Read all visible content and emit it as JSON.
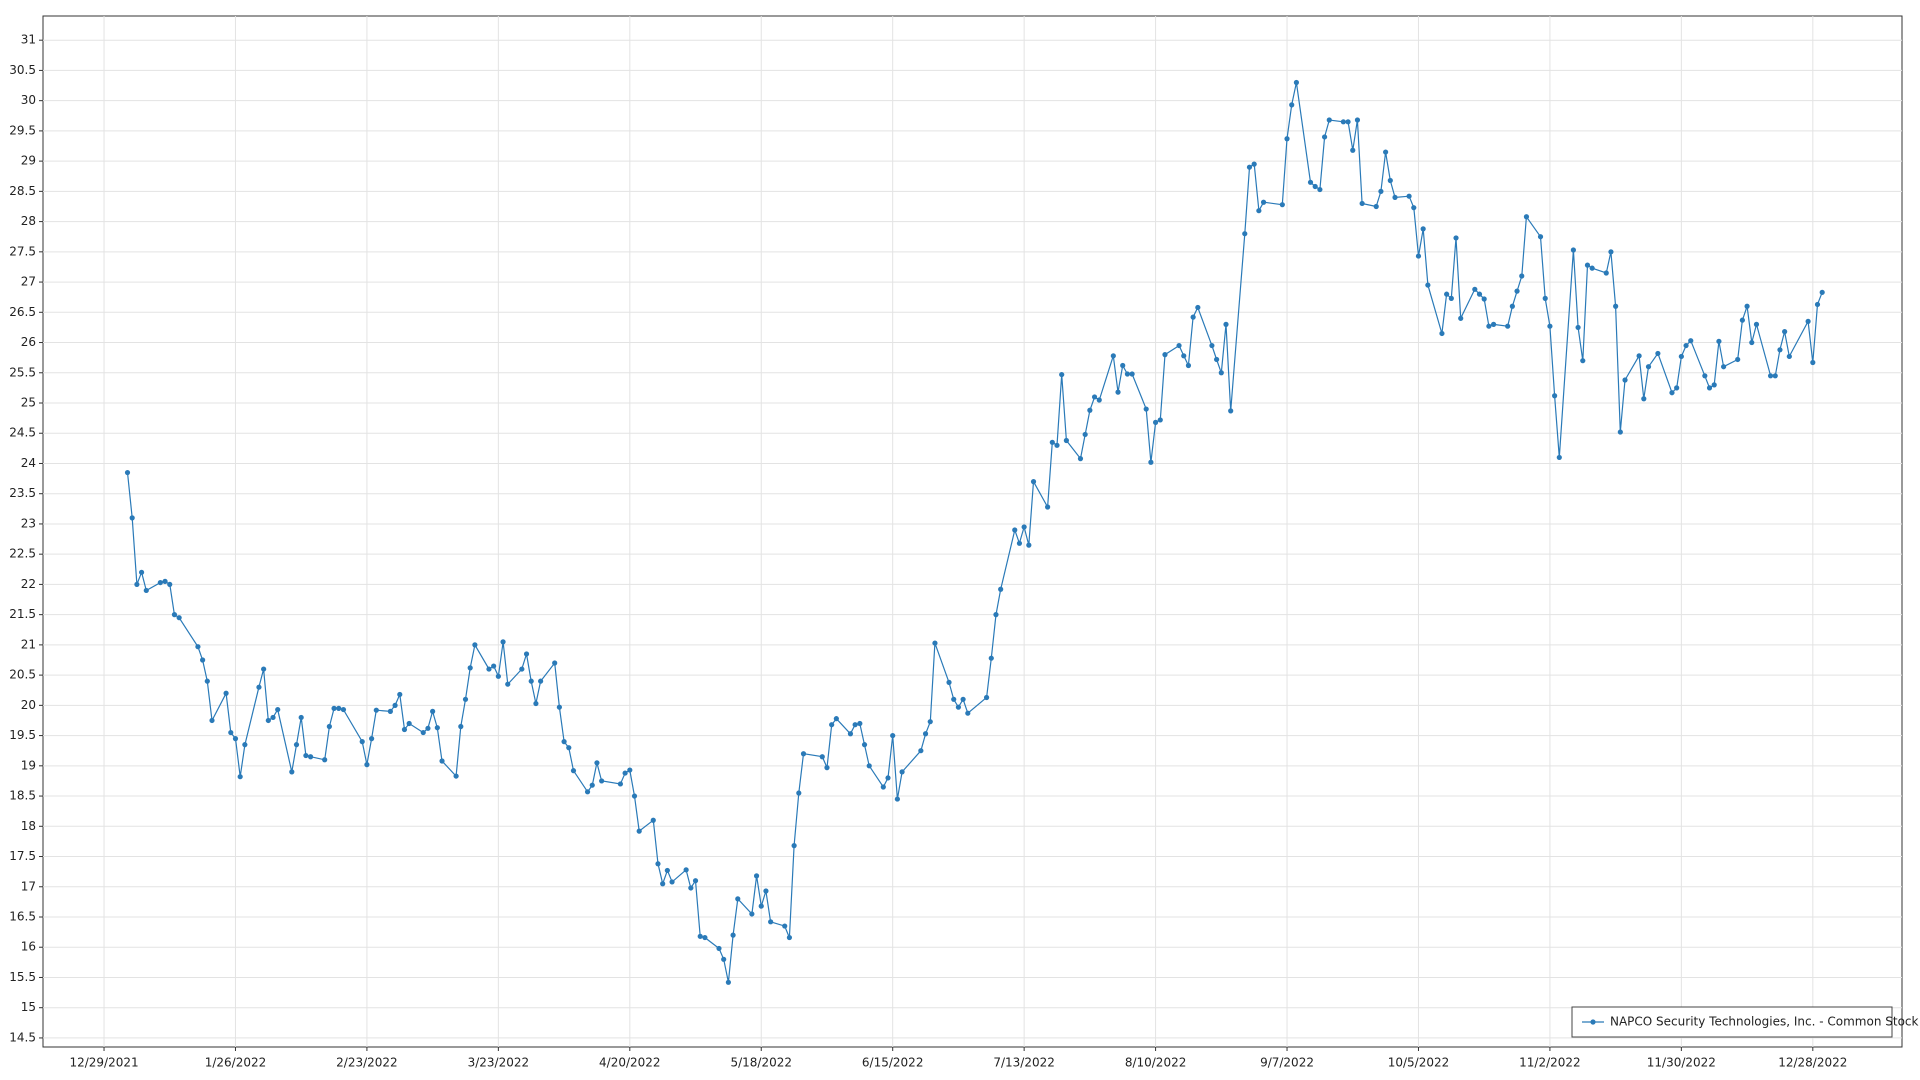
{
  "chart_data": {
    "type": "line",
    "x": [
      "2022-01-03",
      "2022-01-04",
      "2022-01-05",
      "2022-01-06",
      "2022-01-07",
      "2022-01-10",
      "2022-01-11",
      "2022-01-12",
      "2022-01-13",
      "2022-01-14",
      "2022-01-18",
      "2022-01-19",
      "2022-01-20",
      "2022-01-21",
      "2022-01-24",
      "2022-01-25",
      "2022-01-26",
      "2022-01-27",
      "2022-01-28",
      "2022-01-31",
      "2022-02-01",
      "2022-02-02",
      "2022-02-03",
      "2022-02-04",
      "2022-02-07",
      "2022-02-08",
      "2022-02-09",
      "2022-02-10",
      "2022-02-11",
      "2022-02-14",
      "2022-02-15",
      "2022-02-16",
      "2022-02-17",
      "2022-02-18",
      "2022-02-22",
      "2022-02-23",
      "2022-02-24",
      "2022-02-25",
      "2022-02-28",
      "2022-03-01",
      "2022-03-02",
      "2022-03-03",
      "2022-03-04",
      "2022-03-07",
      "2022-03-08",
      "2022-03-09",
      "2022-03-10",
      "2022-03-11",
      "2022-03-14",
      "2022-03-15",
      "2022-03-16",
      "2022-03-17",
      "2022-03-18",
      "2022-03-21",
      "2022-03-22",
      "2022-03-23",
      "2022-03-24",
      "2022-03-25",
      "2022-03-28",
      "2022-03-29",
      "2022-03-30",
      "2022-03-31",
      "2022-04-01",
      "2022-04-04",
      "2022-04-05",
      "2022-04-06",
      "2022-04-07",
      "2022-04-08",
      "2022-04-11",
      "2022-04-12",
      "2022-04-13",
      "2022-04-14",
      "2022-04-18",
      "2022-04-19",
      "2022-04-20",
      "2022-04-21",
      "2022-04-22",
      "2022-04-25",
      "2022-04-26",
      "2022-04-27",
      "2022-04-28",
      "2022-04-29",
      "2022-05-02",
      "2022-05-03",
      "2022-05-04",
      "2022-05-05",
      "2022-05-06",
      "2022-05-09",
      "2022-05-10",
      "2022-05-11",
      "2022-05-12",
      "2022-05-13",
      "2022-05-16",
      "2022-05-17",
      "2022-05-18",
      "2022-05-19",
      "2022-05-20",
      "2022-05-23",
      "2022-05-24",
      "2022-05-25",
      "2022-05-26",
      "2022-05-27",
      "2022-05-31",
      "2022-06-01",
      "2022-06-02",
      "2022-06-03",
      "2022-06-06",
      "2022-06-07",
      "2022-06-08",
      "2022-06-09",
      "2022-06-10",
      "2022-06-13",
      "2022-06-14",
      "2022-06-15",
      "2022-06-16",
      "2022-06-17",
      "2022-06-21",
      "2022-06-22",
      "2022-06-23",
      "2022-06-24",
      "2022-06-27",
      "2022-06-28",
      "2022-06-29",
      "2022-06-30",
      "2022-07-01",
      "2022-07-05",
      "2022-07-06",
      "2022-07-07",
      "2022-07-08",
      "2022-07-11",
      "2022-07-12",
      "2022-07-13",
      "2022-07-14",
      "2022-07-15",
      "2022-07-18",
      "2022-07-19",
      "2022-07-20",
      "2022-07-21",
      "2022-07-22",
      "2022-07-25",
      "2022-07-26",
      "2022-07-27",
      "2022-07-28",
      "2022-07-29",
      "2022-08-01",
      "2022-08-02",
      "2022-08-03",
      "2022-08-04",
      "2022-08-05",
      "2022-08-08",
      "2022-08-09",
      "2022-08-10",
      "2022-08-11",
      "2022-08-12",
      "2022-08-15",
      "2022-08-16",
      "2022-08-17",
      "2022-08-18",
      "2022-08-19",
      "2022-08-22",
      "2022-08-23",
      "2022-08-24",
      "2022-08-25",
      "2022-08-26",
      "2022-08-29",
      "2022-08-30",
      "2022-08-31",
      "2022-09-01",
      "2022-09-02",
      "2022-09-06",
      "2022-09-07",
      "2022-09-08",
      "2022-09-09",
      "2022-09-12",
      "2022-09-13",
      "2022-09-14",
      "2022-09-15",
      "2022-09-16",
      "2022-09-19",
      "2022-09-20",
      "2022-09-21",
      "2022-09-22",
      "2022-09-23",
      "2022-09-26",
      "2022-09-27",
      "2022-09-28",
      "2022-09-29",
      "2022-09-30",
      "2022-10-03",
      "2022-10-04",
      "2022-10-05",
      "2022-10-06",
      "2022-10-07",
      "2022-10-10",
      "2022-10-11",
      "2022-10-12",
      "2022-10-13",
      "2022-10-14",
      "2022-10-17",
      "2022-10-18",
      "2022-10-19",
      "2022-10-20",
      "2022-10-21",
      "2022-10-24",
      "2022-10-25",
      "2022-10-26",
      "2022-10-27",
      "2022-10-28",
      "2022-10-31",
      "2022-11-01",
      "2022-11-02",
      "2022-11-03",
      "2022-11-04",
      "2022-11-07",
      "2022-11-08",
      "2022-11-09",
      "2022-11-10",
      "2022-11-11",
      "2022-11-14",
      "2022-11-15",
      "2022-11-16",
      "2022-11-17",
      "2022-11-18",
      "2022-11-21",
      "2022-11-22",
      "2022-11-23",
      "2022-11-25",
      "2022-11-28",
      "2022-11-29",
      "2022-11-30",
      "2022-12-01",
      "2022-12-02",
      "2022-12-05",
      "2022-12-06",
      "2022-12-07",
      "2022-12-08",
      "2022-12-09",
      "2022-12-12",
      "2022-12-13",
      "2022-12-14",
      "2022-12-15",
      "2022-12-16",
      "2022-12-19",
      "2022-12-20",
      "2022-12-21",
      "2022-12-22",
      "2022-12-23",
      "2022-12-27",
      "2022-12-28",
      "2022-12-29",
      "2022-12-30"
    ],
    "series": [
      {
        "name": "NAPCO Security Technologies, Inc. - Common Stock",
        "color": "#2a7ab8",
        "values": [
          23.85,
          23.1,
          22.0,
          22.2,
          21.9,
          22.03,
          22.05,
          22.0,
          21.5,
          21.45,
          20.97,
          20.75,
          20.4,
          19.75,
          20.2,
          19.55,
          19.45,
          18.82,
          19.35,
          20.3,
          20.6,
          19.75,
          19.8,
          19.93,
          18.9,
          19.35,
          19.8,
          19.17,
          19.15,
          19.1,
          19.65,
          19.95,
          19.95,
          19.93,
          19.4,
          19.02,
          19.45,
          19.92,
          19.9,
          20.0,
          20.18,
          19.6,
          19.7,
          19.55,
          19.62,
          19.9,
          19.63,
          19.08,
          18.83,
          19.65,
          20.1,
          20.62,
          21.0,
          20.6,
          20.65,
          20.48,
          21.05,
          20.35,
          20.6,
          20.85,
          20.4,
          20.03,
          20.4,
          20.7,
          19.97,
          19.4,
          19.3,
          18.92,
          18.57,
          18.68,
          19.05,
          18.75,
          18.7,
          18.88,
          18.93,
          18.5,
          17.92,
          18.1,
          17.38,
          17.05,
          17.27,
          17.08,
          17.28,
          16.98,
          17.1,
          16.18,
          16.16,
          15.98,
          15.8,
          15.42,
          16.2,
          16.8,
          16.55,
          17.18,
          16.68,
          16.93,
          16.42,
          16.35,
          16.16,
          17.68,
          18.55,
          19.2,
          19.15,
          18.97,
          19.68,
          19.78,
          19.53,
          19.68,
          19.7,
          19.35,
          19.0,
          18.65,
          18.8,
          19.5,
          18.45,
          18.9,
          19.25,
          19.53,
          19.73,
          21.03,
          20.38,
          20.1,
          19.97,
          20.1,
          19.87,
          20.13,
          20.78,
          21.5,
          21.92,
          22.9,
          22.68,
          22.95,
          22.65,
          23.7,
          23.28,
          24.35,
          24.3,
          25.47,
          24.38,
          24.08,
          24.48,
          24.88,
          25.1,
          25.05,
          25.78,
          25.18,
          25.62,
          25.48,
          25.48,
          24.9,
          24.02,
          24.68,
          24.72,
          25.8,
          25.95,
          25.78,
          25.62,
          26.42,
          26.58,
          25.95,
          25.72,
          25.5,
          26.3,
          24.87,
          27.8,
          28.9,
          28.95,
          28.18,
          28.32,
          28.28,
          29.37,
          29.93,
          30.3,
          28.65,
          28.58,
          28.53,
          29.4,
          29.68,
          29.65,
          29.65,
          29.18,
          29.68,
          28.3,
          28.25,
          28.5,
          29.15,
          28.68,
          28.4,
          28.42,
          28.23,
          27.43,
          27.88,
          26.95,
          26.15,
          26.8,
          26.73,
          27.73,
          26.4,
          26.88,
          26.8,
          26.72,
          26.27,
          26.3,
          26.27,
          26.6,
          26.85,
          27.1,
          28.08,
          27.75,
          26.73,
          26.27,
          25.12,
          24.1,
          27.53,
          26.25,
          25.7,
          27.28,
          27.23,
          27.15,
          27.5,
          26.6,
          24.52,
          25.38,
          25.78,
          25.07,
          25.6,
          25.82,
          25.17,
          25.25,
          25.77,
          25.95,
          26.03,
          25.45,
          25.25,
          25.3,
          26.02,
          25.6,
          25.72,
          26.37,
          26.6,
          26.0,
          26.3,
          25.45,
          25.45,
          25.88,
          26.18,
          25.77,
          26.35,
          25.67,
          26.63,
          26.83
        ]
      }
    ],
    "xlim": [
      "2021-12-16",
      "2023-01-16"
    ],
    "xticks": [
      {
        "value": "2021-12-29",
        "label": "12/29/2021"
      },
      {
        "value": "2022-01-26",
        "label": "1/26/2022"
      },
      {
        "value": "2022-02-23",
        "label": "2/23/2022"
      },
      {
        "value": "2022-03-23",
        "label": "3/23/2022"
      },
      {
        "value": "2022-04-20",
        "label": "4/20/2022"
      },
      {
        "value": "2022-05-18",
        "label": "5/18/2022"
      },
      {
        "value": "2022-06-15",
        "label": "6/15/2022"
      },
      {
        "value": "2022-07-13",
        "label": "7/13/2022"
      },
      {
        "value": "2022-08-10",
        "label": "8/10/2022"
      },
      {
        "value": "2022-09-07",
        "label": "9/7/2022"
      },
      {
        "value": "2022-10-05",
        "label": "10/5/2022"
      },
      {
        "value": "2022-11-02",
        "label": "11/2/2022"
      },
      {
        "value": "2022-11-30",
        "label": "11/30/2022"
      },
      {
        "value": "2022-12-28",
        "label": "12/28/2022"
      }
    ],
    "ylim": [
      14.35,
      31.4
    ],
    "yticks": [
      14.5,
      15,
      15.5,
      16,
      16.5,
      17,
      17.5,
      18,
      18.5,
      19,
      19.5,
      20,
      20.5,
      21,
      21.5,
      22,
      22.5,
      23,
      23.5,
      24,
      24.5,
      25,
      25.5,
      26,
      26.5,
      27,
      27.5,
      28,
      28.5,
      29,
      29.5,
      30,
      30.5,
      31
    ],
    "grid": true,
    "legend": "bottom-right",
    "markers": true
  }
}
